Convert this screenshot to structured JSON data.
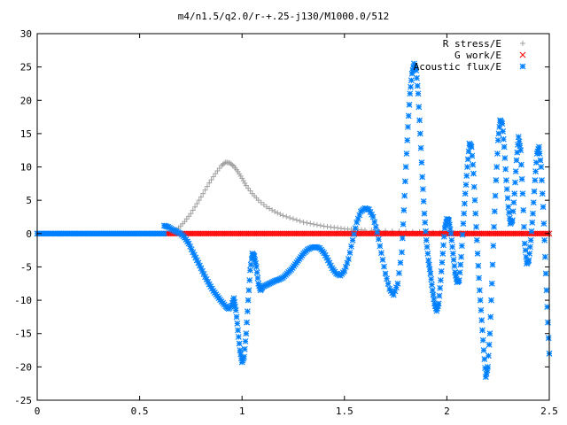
{
  "chart_data": {
    "type": "scatter",
    "title": "m4/n1.5/q2.0/r-+.25-j130/M1000.0/512",
    "xlim": [
      0,
      2.5
    ],
    "ylim": [
      -25,
      30
    ],
    "x_ticks": [
      0,
      0.5,
      1,
      1.5,
      2,
      2.5
    ],
    "x_tick_labels": [
      "0",
      "0.5",
      "1",
      "1.5",
      "2",
      "2.5"
    ],
    "y_ticks": [
      -25,
      -20,
      -15,
      -10,
      -5,
      0,
      5,
      10,
      15,
      20,
      25,
      30
    ],
    "y_tick_labels": [
      "-25",
      "-20",
      "-15",
      "-10",
      "-5",
      "0",
      "5",
      "10",
      "15",
      "20",
      "25",
      "30"
    ],
    "legend_position": "top-right",
    "series": [
      {
        "name": "R stress/E",
        "marker": "plus",
        "color": "#a0a0a0",
        "points": [
          [
            0.63,
            0.0
          ],
          [
            0.66,
            0.2
          ],
          [
            0.69,
            0.8
          ],
          [
            0.72,
            1.8
          ],
          [
            0.75,
            3.0
          ],
          [
            0.78,
            4.5
          ],
          [
            0.81,
            6.0
          ],
          [
            0.84,
            7.6
          ],
          [
            0.87,
            9.0
          ],
          [
            0.9,
            10.2
          ],
          [
            0.92,
            10.7
          ],
          [
            0.94,
            10.6
          ],
          [
            0.96,
            10.1
          ],
          [
            0.98,
            9.3
          ],
          [
            1.0,
            8.3
          ],
          [
            1.02,
            7.2
          ],
          [
            1.05,
            6.0
          ],
          [
            1.08,
            5.0
          ],
          [
            1.12,
            4.0
          ],
          [
            1.16,
            3.3
          ],
          [
            1.2,
            2.7
          ],
          [
            1.25,
            2.2
          ],
          [
            1.3,
            1.7
          ],
          [
            1.35,
            1.4
          ],
          [
            1.4,
            1.1
          ],
          [
            1.45,
            0.9
          ],
          [
            1.5,
            0.7
          ],
          [
            1.55,
            0.6
          ],
          [
            1.6,
            0.5
          ],
          [
            1.7,
            0.4
          ],
          [
            1.8,
            0.3
          ],
          [
            1.9,
            0.2
          ],
          [
            2.0,
            0.15
          ],
          [
            2.1,
            0.1
          ],
          [
            2.2,
            0.05
          ],
          [
            2.3,
            0.0
          ],
          [
            2.4,
            0.0
          ],
          [
            2.5,
            0.0
          ]
        ]
      },
      {
        "name": "G work/E",
        "marker": "cross",
        "color": "#ff0000",
        "x_range": [
          0.63,
          2.5
        ],
        "y_value": 0
      },
      {
        "name": "Acoustic flux/E",
        "marker": "star",
        "color": "#0080ff",
        "flat_x_range": [
          0,
          0.62
        ],
        "flat_y_value": 0,
        "points": [
          [
            0.62,
            1.2
          ],
          [
            0.64,
            1.0
          ],
          [
            0.66,
            0.6
          ],
          [
            0.68,
            0.3
          ],
          [
            0.7,
            0.0
          ],
          [
            0.72,
            -0.6
          ],
          [
            0.74,
            -1.5
          ],
          [
            0.76,
            -2.8
          ],
          [
            0.78,
            -4.0
          ],
          [
            0.8,
            -5.2
          ],
          [
            0.82,
            -6.5
          ],
          [
            0.84,
            -7.6
          ],
          [
            0.86,
            -8.6
          ],
          [
            0.88,
            -9.4
          ],
          [
            0.9,
            -10.2
          ],
          [
            0.92,
            -10.9
          ],
          [
            0.935,
            -11.3
          ],
          [
            0.95,
            -10.8
          ],
          [
            0.96,
            -9.7
          ],
          [
            0.97,
            -11.5
          ],
          [
            0.98,
            -14.5
          ],
          [
            0.99,
            -17.5
          ],
          [
            1.0,
            -19.3
          ],
          [
            1.01,
            -18.5
          ],
          [
            1.02,
            -15.0
          ],
          [
            1.03,
            -10.0
          ],
          [
            1.04,
            -5.5
          ],
          [
            1.05,
            -3.0
          ],
          [
            1.06,
            -3.4
          ],
          [
            1.07,
            -5.0
          ],
          [
            1.08,
            -7.5
          ],
          [
            1.09,
            -8.5
          ],
          [
            1.1,
            -8.0
          ],
          [
            1.12,
            -7.7
          ],
          [
            1.14,
            -7.4
          ],
          [
            1.16,
            -7.1
          ],
          [
            1.18,
            -6.9
          ],
          [
            1.2,
            -6.6
          ],
          [
            1.22,
            -6.0
          ],
          [
            1.24,
            -5.4
          ],
          [
            1.26,
            -4.6
          ],
          [
            1.28,
            -3.8
          ],
          [
            1.3,
            -3.0
          ],
          [
            1.32,
            -2.4
          ],
          [
            1.34,
            -2.1
          ],
          [
            1.36,
            -2.0
          ],
          [
            1.38,
            -2.2
          ],
          [
            1.4,
            -2.9
          ],
          [
            1.42,
            -4.0
          ],
          [
            1.44,
            -5.2
          ],
          [
            1.46,
            -6.0
          ],
          [
            1.48,
            -6.3
          ],
          [
            1.5,
            -5.6
          ],
          [
            1.52,
            -3.8
          ],
          [
            1.54,
            -1.0
          ],
          [
            1.56,
            1.7
          ],
          [
            1.58,
            3.3
          ],
          [
            1.6,
            3.8
          ],
          [
            1.62,
            3.6
          ],
          [
            1.64,
            2.5
          ],
          [
            1.66,
            0.2
          ],
          [
            1.68,
            -2.9
          ],
          [
            1.7,
            -6.0
          ],
          [
            1.72,
            -8.3
          ],
          [
            1.74,
            -9.2
          ],
          [
            1.76,
            -7.5
          ],
          [
            1.78,
            -2.8
          ],
          [
            1.79,
            3.5
          ],
          [
            1.8,
            10.0
          ],
          [
            1.81,
            16.0
          ],
          [
            1.82,
            21.0
          ],
          [
            1.83,
            24.0
          ],
          [
            1.84,
            25.5
          ],
          [
            1.85,
            24.5
          ],
          [
            1.86,
            21.0
          ],
          [
            1.87,
            15.0
          ],
          [
            1.88,
            8.5
          ],
          [
            1.89,
            3.0
          ],
          [
            1.9,
            -1.0
          ],
          [
            1.91,
            -4.0
          ],
          [
            1.92,
            -6.0
          ],
          [
            1.93,
            -8.5
          ],
          [
            1.94,
            -10.5
          ],
          [
            1.95,
            -11.6
          ],
          [
            1.96,
            -10.5
          ],
          [
            1.97,
            -7.0
          ],
          [
            1.98,
            -3.0
          ],
          [
            1.99,
            0.8
          ],
          [
            2.0,
            2.2
          ],
          [
            2.01,
            2.0
          ],
          [
            2.02,
            0.0
          ],
          [
            2.03,
            -3.0
          ],
          [
            2.04,
            -5.8
          ],
          [
            2.05,
            -7.3
          ],
          [
            2.06,
            -7.0
          ],
          [
            2.07,
            -3.5
          ],
          [
            2.08,
            1.5
          ],
          [
            2.09,
            6.0
          ],
          [
            2.1,
            10.0
          ],
          [
            2.11,
            13.5
          ],
          [
            2.12,
            13.0
          ],
          [
            2.13,
            9.0
          ],
          [
            2.14,
            3.0
          ],
          [
            2.15,
            -3.0
          ],
          [
            2.16,
            -8.5
          ],
          [
            2.17,
            -13.0
          ],
          [
            2.18,
            -17.5
          ],
          [
            2.19,
            -21.5
          ],
          [
            2.2,
            -20.0
          ],
          [
            2.21,
            -15.0
          ],
          [
            2.22,
            -7.5
          ],
          [
            2.23,
            1.0
          ],
          [
            2.24,
            8.0
          ],
          [
            2.25,
            14.0
          ],
          [
            2.26,
            17.0
          ],
          [
            2.27,
            16.5
          ],
          [
            2.28,
            13.0
          ],
          [
            2.29,
            8.0
          ],
          [
            2.3,
            4.0
          ],
          [
            2.31,
            1.5
          ],
          [
            2.32,
            2.0
          ],
          [
            2.33,
            6.0
          ],
          [
            2.34,
            11.0
          ],
          [
            2.35,
            14.5
          ],
          [
            2.36,
            12.5
          ],
          [
            2.37,
            6.0
          ],
          [
            2.38,
            -1.5
          ],
          [
            2.39,
            -4.5
          ],
          [
            2.4,
            -4.0
          ],
          [
            2.41,
            -1.0
          ],
          [
            2.42,
            3.0
          ],
          [
            2.43,
            8.0
          ],
          [
            2.44,
            12.0
          ],
          [
            2.45,
            13.0
          ],
          [
            2.46,
            10.0
          ],
          [
            2.47,
            4.0
          ],
          [
            2.48,
            -3.5
          ],
          [
            2.49,
            -11.0
          ],
          [
            2.5,
            -18.0
          ]
        ]
      }
    ]
  }
}
